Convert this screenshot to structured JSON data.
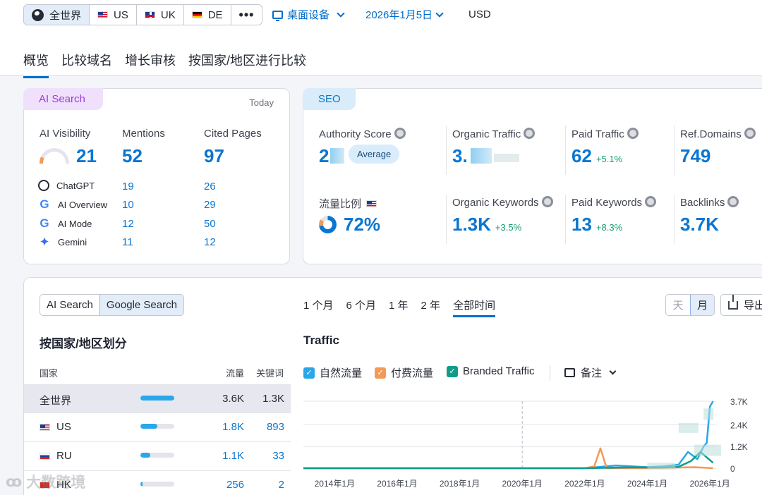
{
  "topbar": {
    "regions": [
      {
        "label": "全世界",
        "icon": "globe-icon",
        "active": true
      },
      {
        "label": "US",
        "icon": "flag-us-icon"
      },
      {
        "label": "UK",
        "icon": "flag-uk-icon"
      },
      {
        "label": "DE",
        "icon": "flag-de-icon"
      }
    ],
    "more_label": "•••",
    "device_label": "桌面设备",
    "date_label": "2026年1月5日",
    "currency": "USD",
    "tabs": [
      "概览",
      "比较域名",
      "增长审核",
      "按国家/地区进行比较"
    ]
  },
  "ai_card": {
    "badge": "AI Search",
    "today": "Today",
    "visibility_label": "AI Visibility",
    "visibility_value": "21",
    "mentions_label": "Mentions",
    "mentions_value": "52",
    "cited_label": "Cited Pages",
    "cited_value": "97",
    "llms": [
      {
        "name": "ChatGPT",
        "icon": "chatgpt-icon",
        "mentions": "19",
        "cited": "26"
      },
      {
        "name": "AI Overview",
        "icon": "google-icon",
        "mentions": "10",
        "cited": "29"
      },
      {
        "name": "AI Mode",
        "icon": "google-icon",
        "mentions": "12",
        "cited": "50"
      },
      {
        "name": "Gemini",
        "icon": "gemini-icon",
        "mentions": "11",
        "cited": "12"
      }
    ]
  },
  "seo_card": {
    "badge": "SEO",
    "authority_label": "Authority Score",
    "authority_value": "2",
    "authority_tag": "Average",
    "organic_traffic_label": "Organic Traffic",
    "organic_traffic_value": "3.",
    "paid_traffic_label": "Paid Traffic",
    "paid_traffic_value": "62",
    "paid_traffic_growth": "+5.1%",
    "ref_domains_label": "Ref.Domains",
    "ref_domains_value": "749",
    "traffic_share_label": "流量比例",
    "traffic_share_value": "72%",
    "traffic_share_fraction": 0.72,
    "organic_kw_label": "Organic Keywords",
    "organic_kw_value": "1.3K",
    "organic_kw_growth": "+3.5%",
    "paid_kw_label": "Paid Keywords",
    "paid_kw_value": "13",
    "paid_kw_growth": "+8.3%",
    "backlinks_label": "Backlinks",
    "backlinks_value": "3.7K"
  },
  "bottom": {
    "seg": [
      "AI Search",
      "Google Search"
    ],
    "periods": [
      "1 个月",
      "6 个月",
      "1 年",
      "2 年",
      "全部时间"
    ],
    "day_label": "天",
    "month_label": "月",
    "export_label": "导出",
    "country_title": "按国家/地区划分",
    "col_country": "国家",
    "col_traffic": "流量",
    "col_keywords": "关键词",
    "rows": [
      {
        "country": "全世界",
        "traffic": "3.6K",
        "keywords": "1.3K",
        "share": 1.0
      },
      {
        "country": "US",
        "flag": "flag-us-icon",
        "traffic": "1.8K",
        "keywords": "893",
        "share": 0.5
      },
      {
        "country": "RU",
        "flag": "flag-ru-icon",
        "traffic": "1.1K",
        "keywords": "33",
        "share": 0.3
      },
      {
        "country": "HK",
        "flag": "flag-hk-icon",
        "traffic": "256",
        "keywords": "2",
        "share": 0.07
      }
    ],
    "traffic_title": "Traffic",
    "legend": [
      {
        "label": "自然流量",
        "color": "#2aa7ea"
      },
      {
        "label": "付费流量",
        "color": "#f39a57"
      },
      {
        "label": "Branded Traffic",
        "color": "#0f9d8a"
      }
    ],
    "note_label": "备注"
  },
  "chart_data": {
    "type": "line",
    "x_ticks": [
      "2014年1月",
      "2016年1月",
      "2018年1月",
      "2020年1月",
      "2022年1月",
      "2024年1月",
      "2026年1月"
    ],
    "y_ticks": [
      "0",
      "1.2K",
      "2.4K",
      "3.7K"
    ],
    "ylim": [
      0,
      3700
    ],
    "series": [
      {
        "name": "自然流量",
        "color": "#2aa7ea",
        "x": [
          2013.0,
          2020.0,
          2022.0,
          2023.0,
          2024.0,
          2024.5,
          2025.0,
          2025.3,
          2025.6,
          2025.8,
          2025.9,
          2026.0,
          2026.1
        ],
        "values": [
          0,
          0,
          0,
          150,
          60,
          100,
          200,
          900,
          500,
          1200,
          1400,
          3400,
          3700
        ]
      },
      {
        "name": "付费流量",
        "color": "#f39a57",
        "x": [
          2013.0,
          2022.0,
          2022.3,
          2022.5,
          2022.7,
          2024.0,
          2025.5,
          2026.1
        ],
        "values": [
          0,
          0,
          100,
          1100,
          0,
          0,
          60,
          0
        ]
      },
      {
        "name": "Branded Traffic",
        "color": "#0f9d8a",
        "x": [
          2013.0,
          2022.0,
          2023.5,
          2024.5,
          2025.0,
          2025.4,
          2025.7,
          2026.1
        ],
        "values": [
          0,
          0,
          50,
          40,
          80,
          400,
          900,
          300
        ]
      }
    ]
  },
  "watermark": "大数跨境"
}
